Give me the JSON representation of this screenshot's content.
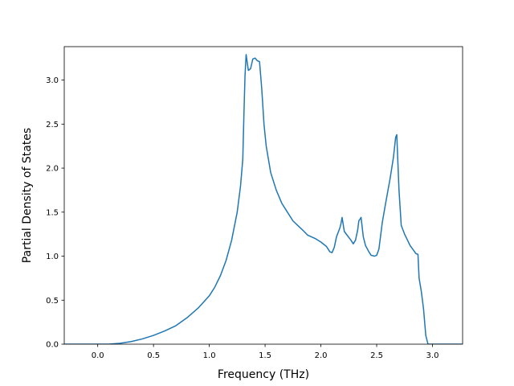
{
  "chart_data": {
    "type": "line",
    "title": "",
    "xlabel": "Frequency (THz)",
    "ylabel": "Partial Density of States",
    "xlim": [
      -0.3,
      3.27
    ],
    "ylim": [
      0.0,
      3.38
    ],
    "xticks": [
      0.0,
      0.5,
      1.0,
      1.5,
      2.0,
      2.5,
      3.0
    ],
    "xtick_labels": [
      "0.0",
      "0.5",
      "1.0",
      "1.5",
      "2.0",
      "2.5",
      "3.0"
    ],
    "yticks": [
      0.0,
      0.5,
      1.0,
      1.5,
      2.0,
      2.5,
      3.0
    ],
    "ytick_labels": [
      "0.0",
      "0.5",
      "1.0",
      "1.5",
      "2.0",
      "2.5",
      "3.0"
    ],
    "grid": false,
    "legend": false,
    "series": [
      {
        "color": "#1f77b4",
        "points": [
          [
            -0.3,
            0.0
          ],
          [
            -0.2,
            0.0
          ],
          [
            -0.1,
            0.0
          ],
          [
            0.0,
            0.0
          ],
          [
            0.1,
            0.0
          ],
          [
            0.2,
            0.01
          ],
          [
            0.3,
            0.03
          ],
          [
            0.4,
            0.06
          ],
          [
            0.5,
            0.1
          ],
          [
            0.6,
            0.15
          ],
          [
            0.7,
            0.21
          ],
          [
            0.8,
            0.3
          ],
          [
            0.9,
            0.41
          ],
          [
            1.0,
            0.55
          ],
          [
            1.05,
            0.65
          ],
          [
            1.1,
            0.78
          ],
          [
            1.15,
            0.95
          ],
          [
            1.2,
            1.18
          ],
          [
            1.25,
            1.5
          ],
          [
            1.28,
            1.8
          ],
          [
            1.3,
            2.1
          ],
          [
            1.31,
            2.6
          ],
          [
            1.32,
            3.05
          ],
          [
            1.33,
            3.29
          ],
          [
            1.35,
            3.11
          ],
          [
            1.37,
            3.13
          ],
          [
            1.39,
            3.24
          ],
          [
            1.41,
            3.25
          ],
          [
            1.43,
            3.22
          ],
          [
            1.45,
            3.21
          ],
          [
            1.47,
            2.9
          ],
          [
            1.49,
            2.5
          ],
          [
            1.51,
            2.25
          ],
          [
            1.55,
            1.95
          ],
          [
            1.6,
            1.75
          ],
          [
            1.65,
            1.6
          ],
          [
            1.7,
            1.5
          ],
          [
            1.75,
            1.4
          ],
          [
            1.8,
            1.34
          ],
          [
            1.85,
            1.28
          ],
          [
            1.88,
            1.24
          ],
          [
            1.95,
            1.2
          ],
          [
            2.0,
            1.16
          ],
          [
            2.05,
            1.11
          ],
          [
            2.08,
            1.05
          ],
          [
            2.1,
            1.04
          ],
          [
            2.12,
            1.1
          ],
          [
            2.14,
            1.22
          ],
          [
            2.17,
            1.32
          ],
          [
            2.18,
            1.37
          ],
          [
            2.19,
            1.44
          ],
          [
            2.21,
            1.28
          ],
          [
            2.24,
            1.23
          ],
          [
            2.27,
            1.18
          ],
          [
            2.29,
            1.14
          ],
          [
            2.31,
            1.18
          ],
          [
            2.33,
            1.3
          ],
          [
            2.34,
            1.4
          ],
          [
            2.36,
            1.44
          ],
          [
            2.38,
            1.22
          ],
          [
            2.4,
            1.12
          ],
          [
            2.43,
            1.05
          ],
          [
            2.45,
            1.01
          ],
          [
            2.48,
            1.0
          ],
          [
            2.5,
            1.01
          ],
          [
            2.52,
            1.08
          ],
          [
            2.55,
            1.38
          ],
          [
            2.58,
            1.6
          ],
          [
            2.62,
            1.88
          ],
          [
            2.65,
            2.12
          ],
          [
            2.67,
            2.35
          ],
          [
            2.68,
            2.38
          ],
          [
            2.7,
            1.75
          ],
          [
            2.72,
            1.35
          ],
          [
            2.75,
            1.25
          ],
          [
            2.8,
            1.12
          ],
          [
            2.84,
            1.05
          ],
          [
            2.85,
            1.03
          ],
          [
            2.87,
            1.02
          ],
          [
            2.88,
            0.75
          ],
          [
            2.9,
            0.6
          ],
          [
            2.92,
            0.4
          ],
          [
            2.94,
            0.1
          ],
          [
            2.96,
            0.0
          ],
          [
            3.0,
            0.0
          ],
          [
            3.1,
            0.0
          ],
          [
            3.27,
            0.0
          ]
        ]
      }
    ]
  }
}
